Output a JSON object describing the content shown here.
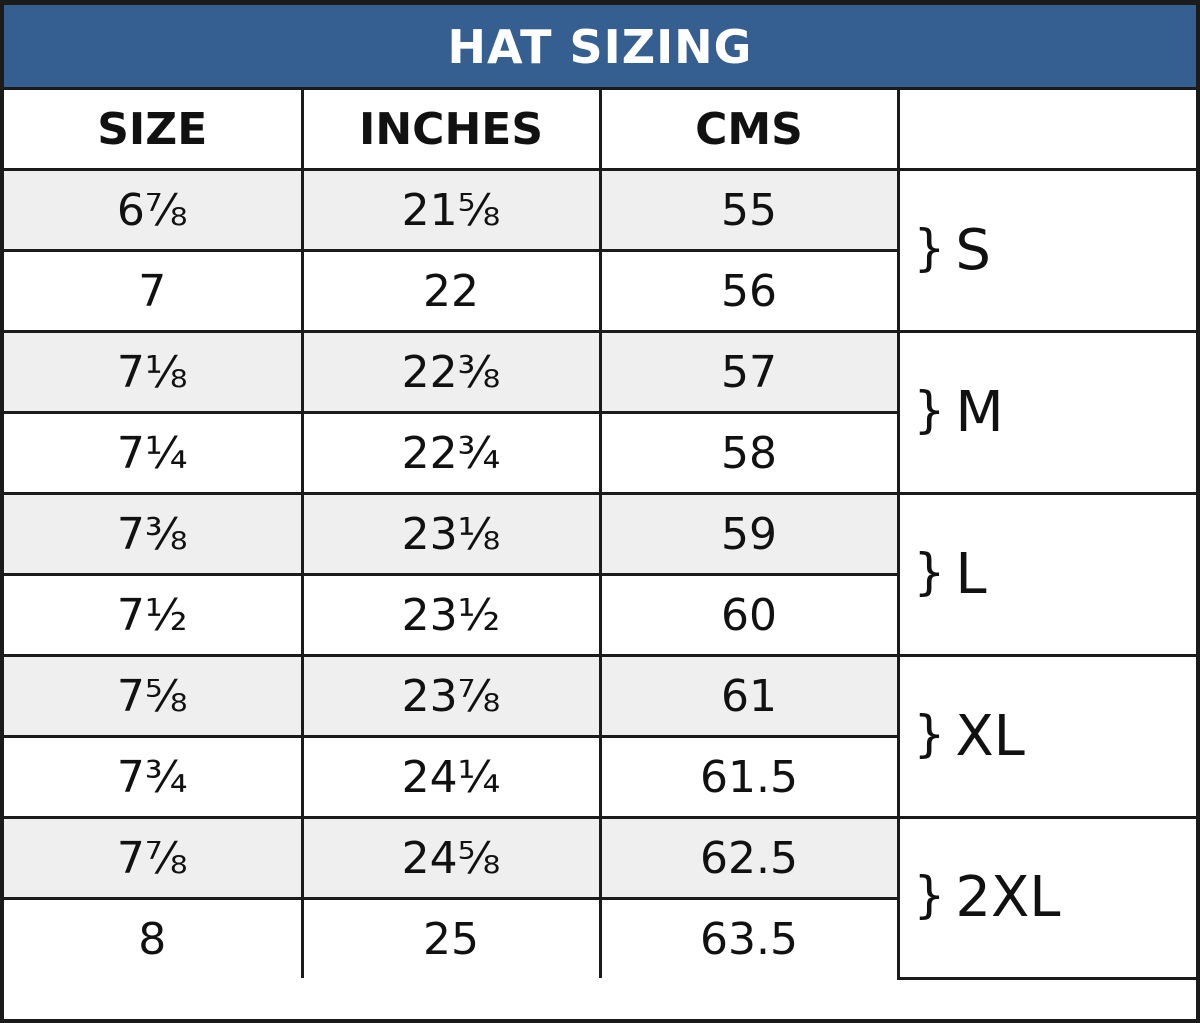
{
  "title": "HAT SIZING",
  "headers": [
    "SIZE",
    "INCHES",
    "CMS",
    ""
  ],
  "rows": [
    {
      "size": "6⅞",
      "inches": "21⅝",
      "cms": "55"
    },
    {
      "size": "7",
      "inches": "22",
      "cms": "56"
    },
    {
      "size": "7⅛",
      "inches": "22⅜",
      "cms": "57"
    },
    {
      "size": "7¼",
      "inches": "22¾",
      "cms": "58"
    },
    {
      "size": "7⅜",
      "inches": "23⅛",
      "cms": "59"
    },
    {
      "size": "7½",
      "inches": "23½",
      "cms": "60"
    },
    {
      "size": "7⅝",
      "inches": "23⅞",
      "cms": "61"
    },
    {
      "size": "7¾",
      "inches": "24¼",
      "cms": "61.5"
    },
    {
      "size": "7⅞",
      "inches": "24⅝",
      "cms": "62.5"
    },
    {
      "size": "8",
      "inches": "25",
      "cms": "63.5"
    }
  ],
  "groups": [
    {
      "brace": "}",
      "label": "S"
    },
    {
      "brace": "}",
      "label": "M"
    },
    {
      "brace": "}",
      "label": "L"
    },
    {
      "brace": "}",
      "label": "XL"
    },
    {
      "brace": "}",
      "label": "2XL"
    }
  ],
  "colors": {
    "title_bg": "#355f91",
    "alt_row": "#efefef",
    "border": "#1b1b1b"
  }
}
